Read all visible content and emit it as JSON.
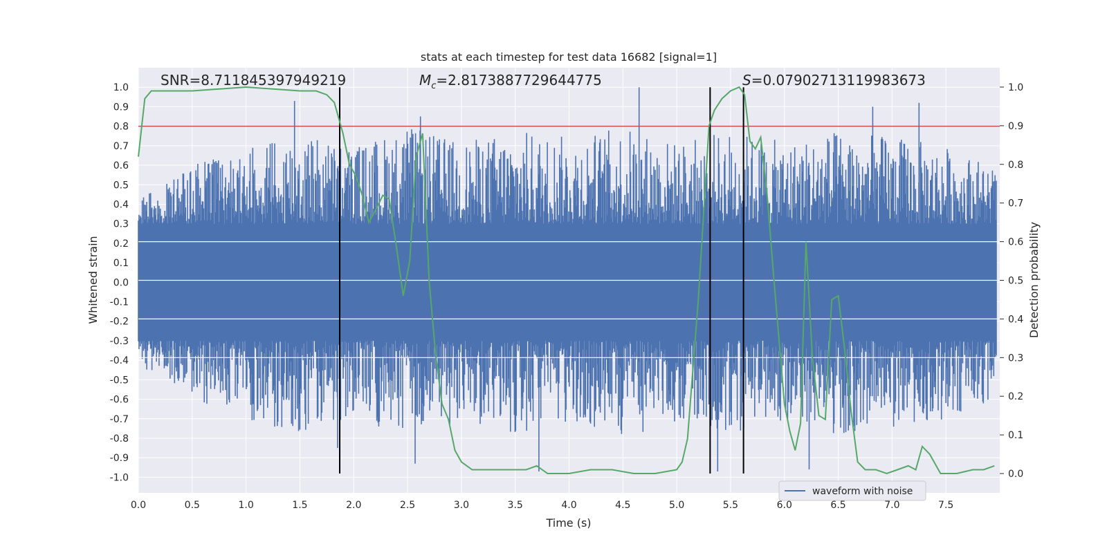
{
  "chart_data": {
    "type": "line",
    "title": "stats at each timestep for test data 16682 [signal=1]",
    "xlabel": "Time (s)",
    "ylabel_left": "Whitened strain",
    "ylabel_right": "Detection probability",
    "xlim": [
      0.0,
      8.0
    ],
    "ylim_left": [
      -1.08,
      1.1
    ],
    "ylim_right": [
      -0.05,
      1.05
    ],
    "x_ticks": [
      "0.0",
      "0.5",
      "1.0",
      "1.5",
      "2.0",
      "2.5",
      "3.0",
      "3.5",
      "4.0",
      "4.5",
      "5.0",
      "5.5",
      "6.0",
      "6.5",
      "7.0",
      "7.5"
    ],
    "left_ticks": [
      "1.0",
      "0.9",
      "0.8",
      "0.7",
      "0.6",
      "0.5",
      "0.4",
      "0.3",
      "0.2",
      "0.1",
      "0.0",
      "-0.1",
      "-0.2",
      "-0.3",
      "-0.4",
      "-0.5",
      "-0.6",
      "-0.7",
      "-0.8",
      "-0.9",
      "-1.0"
    ],
    "right_ticks": [
      "1.0",
      "0.9",
      "0.8",
      "0.7",
      "0.6",
      "0.5",
      "0.4",
      "0.3",
      "0.2",
      "0.1",
      "0.0"
    ],
    "annotations": {
      "snr": "SNR=8.711845397949219",
      "mc_symbol": "M",
      "mc_sub": "c",
      "mc_value": "=2.8173887729644775",
      "s_symbol": "S",
      "s_value": "=0.07902713119983673"
    },
    "threshold": 0.8,
    "vertical_lines": [
      1.87,
      5.31,
      5.62
    ],
    "waveform": {
      "name": "waveform with noise",
      "color": "#4c72b0",
      "core_amplitude": 0.3,
      "envelope": [
        [
          0,
          0.42
        ],
        [
          0.5,
          0.6
        ],
        [
          1.0,
          0.7
        ],
        [
          1.5,
          0.78
        ],
        [
          2.0,
          0.7
        ],
        [
          2.5,
          0.8
        ],
        [
          3.0,
          0.72
        ],
        [
          3.5,
          0.78
        ],
        [
          4.0,
          0.75
        ],
        [
          4.5,
          0.8
        ],
        [
          5.0,
          0.72
        ],
        [
          5.5,
          0.78
        ],
        [
          6.0,
          0.72
        ],
        [
          6.5,
          0.78
        ],
        [
          7.0,
          0.75
        ],
        [
          7.5,
          0.7
        ],
        [
          7.95,
          0.6
        ]
      ],
      "peaks_high": [
        [
          1.45,
          0.93
        ],
        [
          2.62,
          0.85
        ],
        [
          4.65,
          1.0
        ],
        [
          6.82,
          0.9
        ],
        [
          7.25,
          0.92
        ]
      ],
      "peaks_low": [
        [
          2.57,
          -0.93
        ],
        [
          3.72,
          -0.97
        ],
        [
          5.38,
          -0.97
        ],
        [
          6.23,
          -0.96
        ],
        [
          1.85,
          -0.85
        ]
      ]
    },
    "probability": {
      "color": "#55a868",
      "x": [
        0.0,
        0.06,
        0.12,
        0.25,
        0.5,
        1.0,
        1.5,
        1.65,
        1.75,
        1.82,
        1.9,
        1.96,
        2.02,
        2.08,
        2.14,
        2.2,
        2.27,
        2.33,
        2.4,
        2.46,
        2.52,
        2.58,
        2.64,
        2.7,
        2.76,
        2.82,
        2.88,
        2.94,
        3.0,
        3.05,
        3.1,
        3.2,
        3.4,
        3.6,
        3.7,
        3.75,
        3.8,
        4.0,
        4.2,
        4.4,
        4.6,
        4.8,
        5.0,
        5.05,
        5.1,
        5.2,
        5.3,
        5.35,
        5.42,
        5.5,
        5.58,
        5.63,
        5.68,
        5.73,
        5.78,
        5.84,
        5.9,
        6.0,
        6.05,
        6.1,
        6.15,
        6.2,
        6.26,
        6.32,
        6.38,
        6.44,
        6.5,
        6.56,
        6.62,
        6.68,
        6.75,
        6.85,
        6.95,
        7.05,
        7.15,
        7.22,
        7.28,
        7.35,
        7.45,
        7.6,
        7.75,
        7.85,
        7.95
      ],
      "y": [
        0.82,
        0.97,
        0.99,
        0.99,
        0.99,
        1.0,
        0.99,
        0.99,
        0.98,
        0.96,
        0.88,
        0.8,
        0.77,
        0.72,
        0.65,
        0.68,
        0.72,
        0.71,
        0.58,
        0.46,
        0.55,
        0.82,
        0.88,
        0.5,
        0.31,
        0.18,
        0.14,
        0.06,
        0.03,
        0.02,
        0.01,
        0.01,
        0.01,
        0.01,
        0.02,
        0.01,
        0.0,
        0.0,
        0.01,
        0.01,
        0.0,
        0.0,
        0.01,
        0.03,
        0.09,
        0.45,
        0.9,
        0.94,
        0.97,
        0.99,
        1.0,
        0.98,
        0.86,
        0.84,
        0.87,
        0.72,
        0.51,
        0.18,
        0.11,
        0.06,
        0.13,
        0.6,
        0.3,
        0.15,
        0.14,
        0.45,
        0.46,
        0.32,
        0.16,
        0.03,
        0.01,
        0.01,
        0.0,
        0.01,
        0.02,
        0.01,
        0.07,
        0.05,
        0.0,
        0.0,
        0.01,
        0.01,
        0.02
      ]
    },
    "threshold_color": "#c44e52",
    "legend_position": "lower-right"
  }
}
